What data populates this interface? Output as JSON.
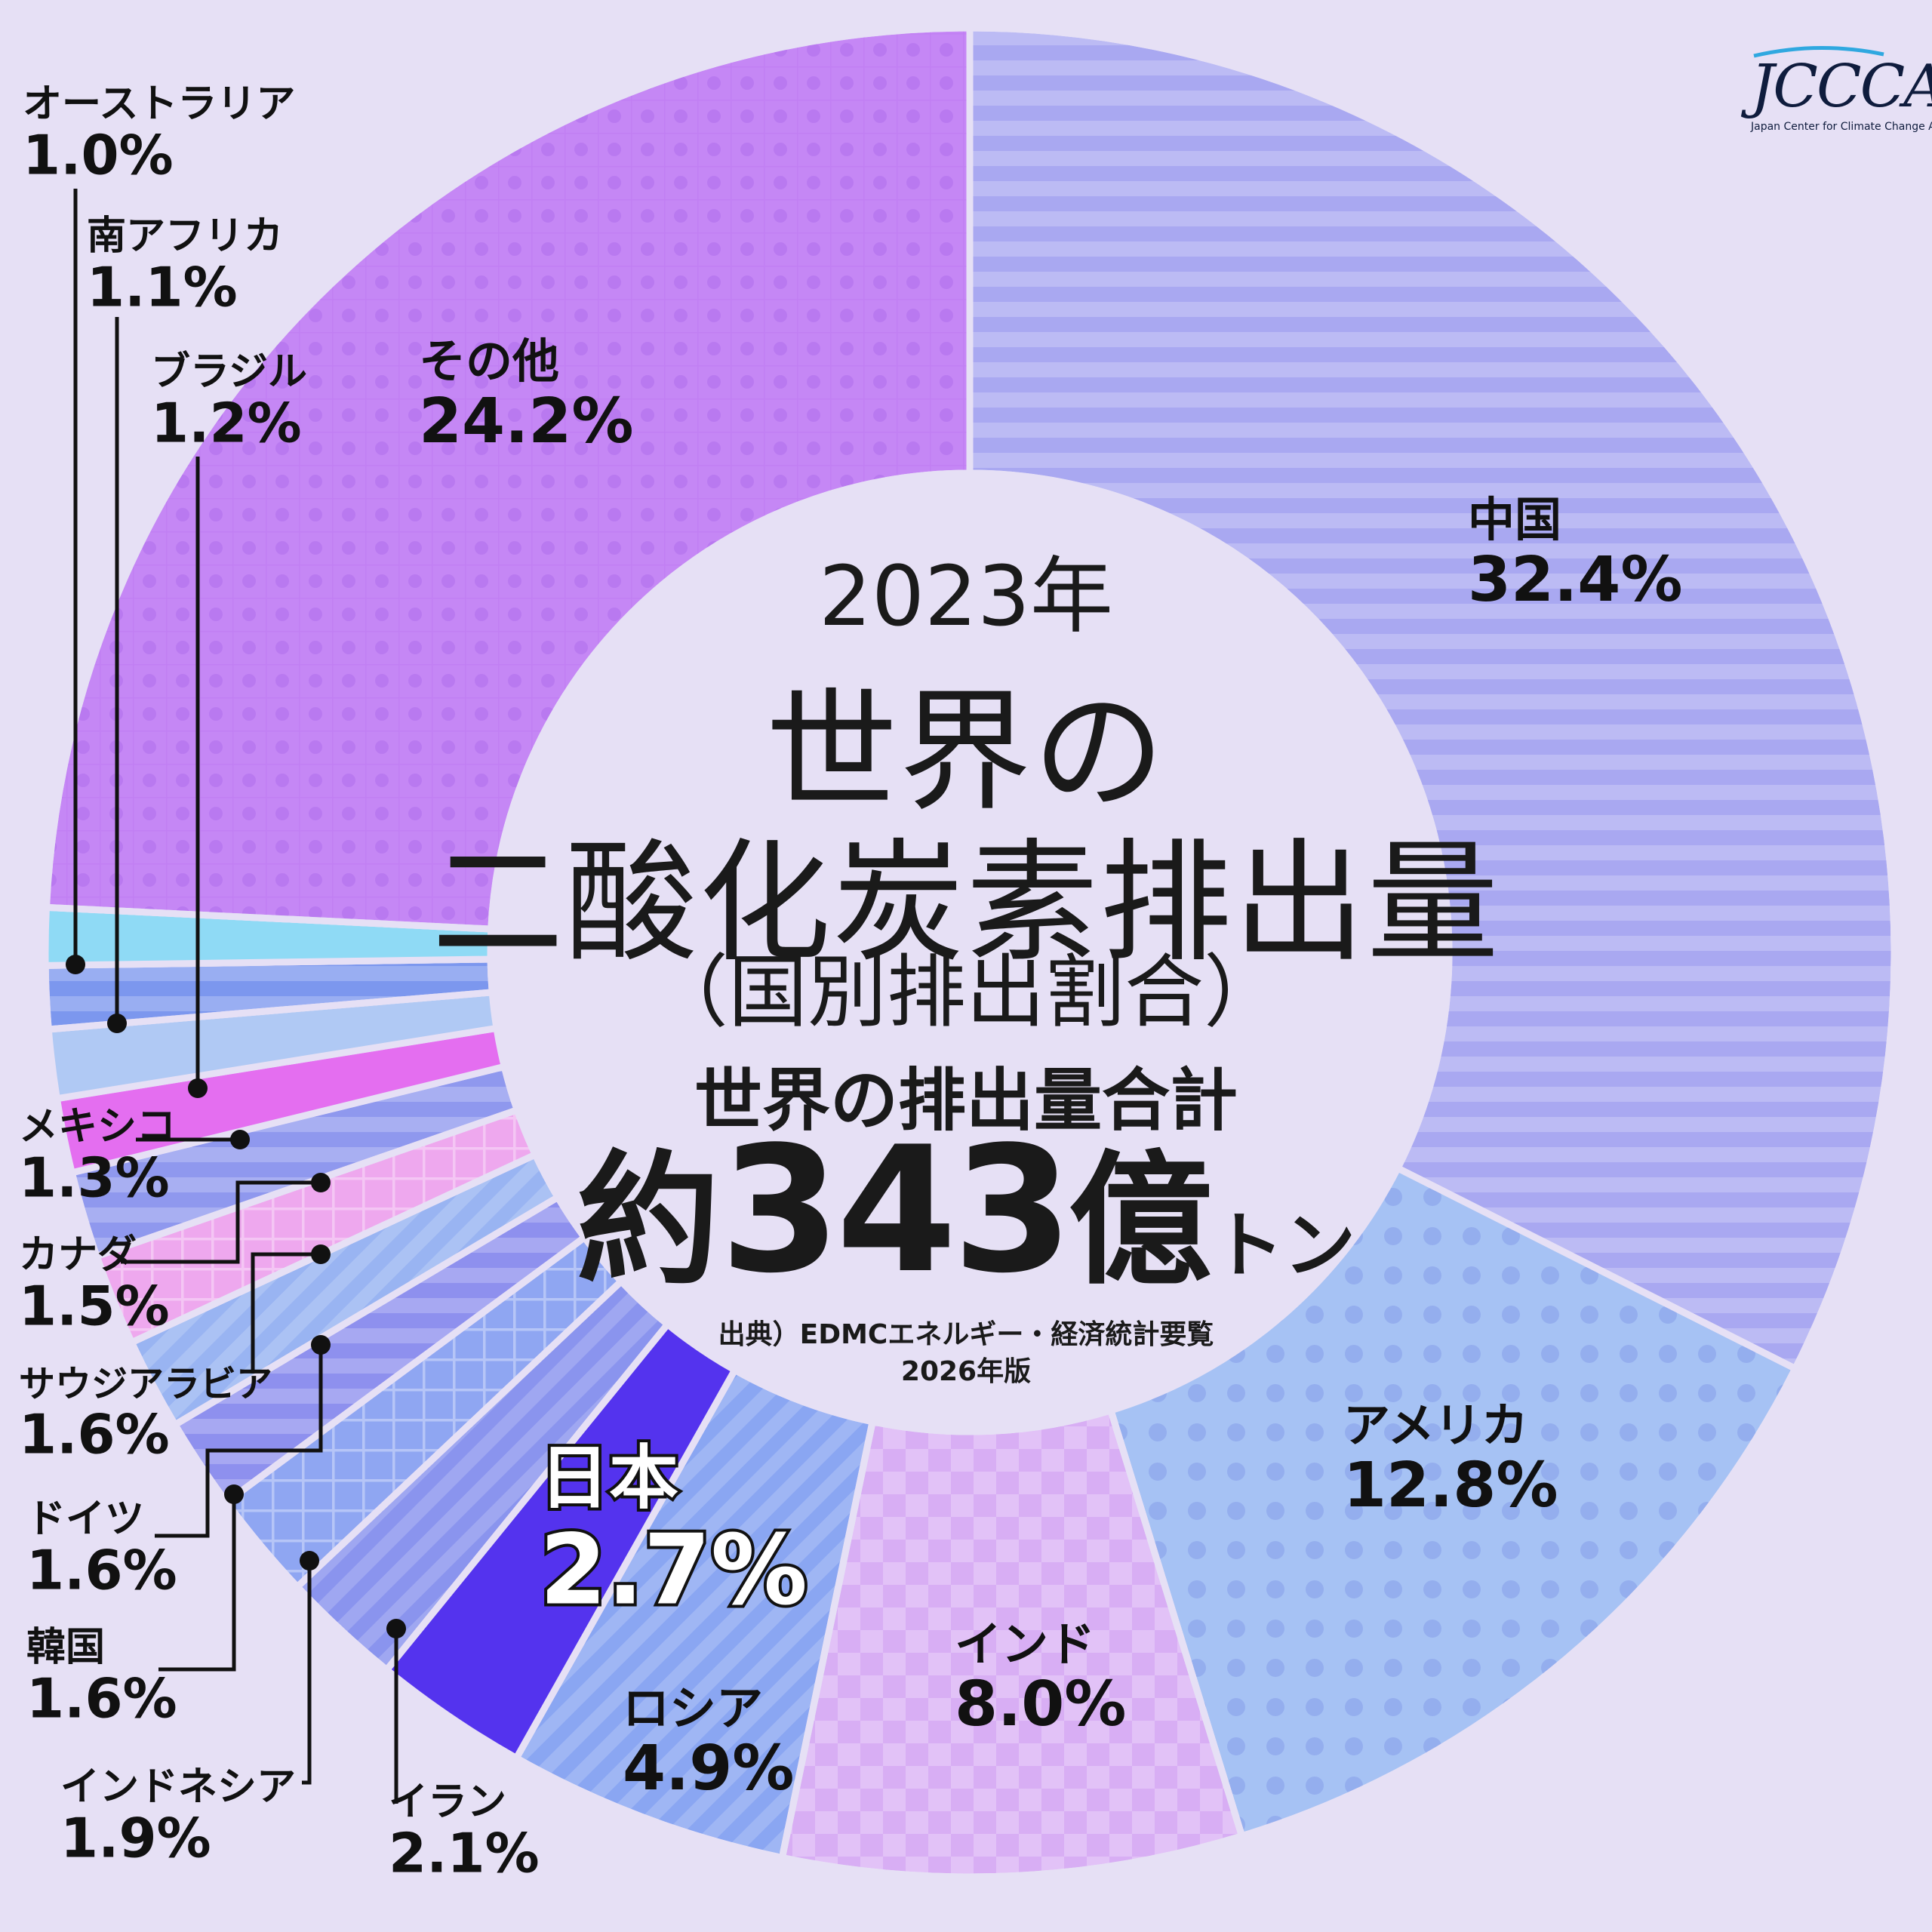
{
  "header": {
    "year": "2023年",
    "title_line1": "世界の",
    "title_line2": "二酸化炭素排出量",
    "subtitle": "（国別排出割合）",
    "total_label": "世界の排出量合計",
    "total_prefix": "約",
    "total_value": "343",
    "total_unit_oku": "億",
    "total_unit_ton": "トン",
    "source_line1": "出典）EDMCエネルギー・経済統計要覧",
    "source_line2": "2026年版"
  },
  "logo": {
    "mark": "JCCCA",
    "subtitle": "Japan Center for Climate Change Actions"
  },
  "chart_data": {
    "type": "pie",
    "title": "世界の二酸化炭素排出量（国別排出割合）",
    "unit": "%",
    "total": "約343億トン",
    "year": "2023年",
    "categories": [
      "中国",
      "アメリカ",
      "インド",
      "ロシア",
      "日本",
      "イラン",
      "インドネシア",
      "韓国",
      "ドイツ",
      "サウジアラビア",
      "カナダ",
      "メキシコ",
      "ブラジル",
      "南アフリカ",
      "オーストラリア",
      "その他"
    ],
    "values": [
      32.4,
      12.8,
      8.0,
      4.9,
      2.7,
      2.1,
      1.9,
      1.6,
      1.6,
      1.6,
      1.5,
      1.3,
      1.2,
      1.1,
      1.0,
      24.2
    ],
    "labels": [
      "32.4%",
      "12.8%",
      "8.0%",
      "4.9%",
      "2.7%",
      "2.1%",
      "1.9%",
      "1.6%",
      "1.6%",
      "1.6%",
      "1.5%",
      "1.3%",
      "1.2%",
      "1.1%",
      "1.0%",
      "24.2%"
    ],
    "colors": [
      "#a9a8f1",
      "#a6c2f4",
      "#d8aef4",
      "#8aa6f2",
      "#5433ee",
      "#8a94ee",
      "#8fa6f2",
      "#8e90ee",
      "#99b4f2",
      "#eea8ee",
      "#8f98ee",
      "#e46ef0",
      "#b0c9f4",
      "#7c97ee",
      "#8fdaf5",
      "#c587f5"
    ],
    "highlight": "日本"
  }
}
